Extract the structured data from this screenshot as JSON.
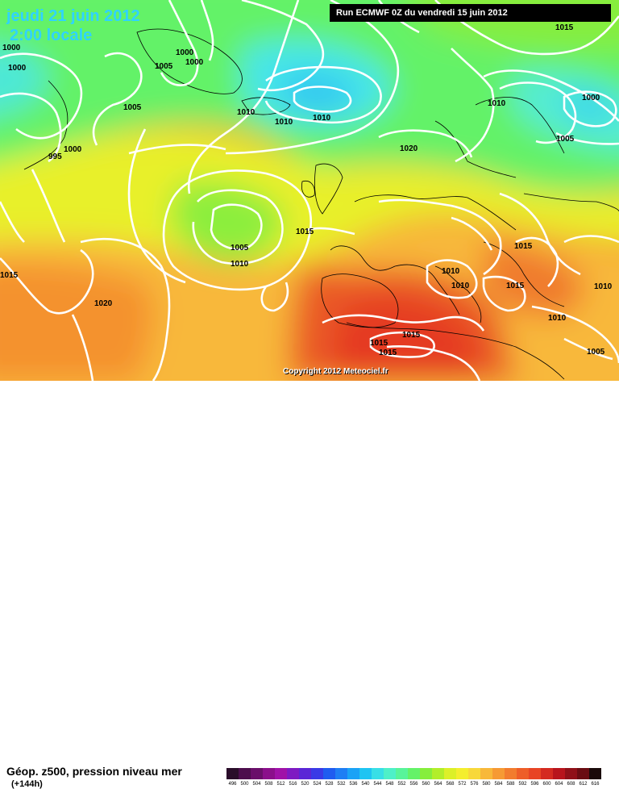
{
  "header": {
    "date": "jeudi 21 juin 2012",
    "time": "2:00 locale",
    "run": "Run ECMWF 0Z du vendredi 15 juin 2012"
  },
  "copyright": "Copyright 2012 Meteociel.fr",
  "legend": {
    "title": "Géop. z500, pression niveau mer",
    "subtitle": "(+144h)",
    "scale_values": [
      "496",
      "500",
      "504",
      "508",
      "512",
      "516",
      "520",
      "524",
      "528",
      "532",
      "536",
      "540",
      "544",
      "548",
      "552",
      "556",
      "560",
      "564",
      "568",
      "572",
      "576",
      "580",
      "584",
      "588",
      "592",
      "596",
      "600",
      "604",
      "608",
      "612",
      "616"
    ],
    "scale_colors": [
      "#2a0d2a",
      "#4d0d4d",
      "#6a0f6a",
      "#8b0f8b",
      "#a012a8",
      "#7e1ac2",
      "#5a26d6",
      "#3a3ae6",
      "#1f5cf0",
      "#1e7ef4",
      "#1aa2f6",
      "#1ec4f2",
      "#38dfe6",
      "#4ef0c8",
      "#58f49a",
      "#64f268",
      "#86ee3c",
      "#b2ee2a",
      "#dcf028",
      "#f4ee2e",
      "#f8d83a",
      "#f8b83a",
      "#f69a34",
      "#f27c2e",
      "#ee5e28",
      "#e84424",
      "#d42a20",
      "#b8141c",
      "#901018",
      "#6a0c12",
      "#1a0a0a"
    ]
  },
  "isobar_labels": [
    {
      "text": "1000",
      "name": "isobar-label-1000-west"
    },
    {
      "text": "1000",
      "name": "isobar-label-1000-greenland"
    },
    {
      "text": "1000",
      "name": "isobar-label-1000-greenland-2"
    },
    {
      "text": "1005",
      "name": "isobar-label-1005-greenland"
    },
    {
      "text": "1000",
      "name": "isobar-label-1000-greenland-3"
    },
    {
      "text": "1005",
      "name": "isobar-label-1005-labrador"
    },
    {
      "text": "1000",
      "name": "isobar-label-1000-labrador"
    },
    {
      "text": "995",
      "name": "isobar-label-995"
    },
    {
      "text": "1010",
      "name": "isobar-label-1010-iceland-a"
    },
    {
      "text": "1010",
      "name": "isobar-label-1010-iceland-b"
    },
    {
      "text": "1010",
      "name": "isobar-label-1010-iceland-c"
    },
    {
      "text": "1015",
      "name": "isobar-label-1015-north"
    },
    {
      "text": "1010",
      "name": "isobar-label-1010-scandinavia"
    },
    {
      "text": "1000",
      "name": "isobar-label-1000-russia"
    },
    {
      "text": "1005",
      "name": "isobar-label-1005-russia"
    },
    {
      "text": "1020",
      "name": "isobar-label-1020-northsea"
    },
    {
      "text": "1015",
      "name": "isobar-label-1015-biscay"
    },
    {
      "text": "1005",
      "name": "isobar-label-1005-atlantic-low"
    },
    {
      "text": "1010",
      "name": "isobar-label-1010-atlantic-low"
    },
    {
      "text": "1015",
      "name": "isobar-label-1015-west-edge"
    },
    {
      "text": "1020",
      "name": "isobar-label-1020-azores"
    },
    {
      "text": "1015",
      "name": "isobar-label-1015-balkans"
    },
    {
      "text": "1010",
      "name": "isobar-label-1010-italy-a"
    },
    {
      "text": "1010",
      "name": "isobar-label-1010-italy-b"
    },
    {
      "text": "1015",
      "name": "isobar-label-1015-adriatic"
    },
    {
      "text": "1010",
      "name": "isobar-label-1010-east"
    },
    {
      "text": "1010",
      "name": "isobar-label-1010-blacksea"
    },
    {
      "text": "1015",
      "name": "isobar-label-1015-algeria-a"
    },
    {
      "text": "1015",
      "name": "isobar-label-1015-algeria-b"
    },
    {
      "text": "1015",
      "name": "isobar-label-1015-algeria-c"
    },
    {
      "text": "1005",
      "name": "isobar-label-1005-southeast"
    }
  ]
}
